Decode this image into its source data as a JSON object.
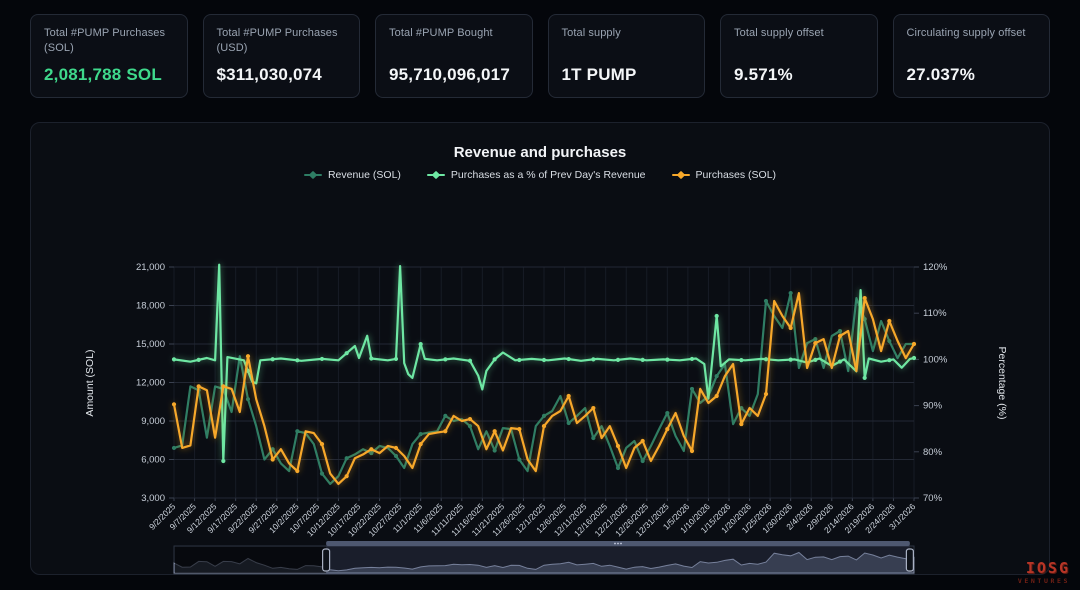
{
  "cards": [
    {
      "label": "Total #PUMP Purchases (SOL)",
      "value": "2,081,788 SOL",
      "value_color": "#3fd98c"
    },
    {
      "label": "Total #PUMP Purchases (USD)",
      "value": "$311,030,074"
    },
    {
      "label": "Total #PUMP Bought",
      "value": "95,710,096,017"
    },
    {
      "label": "Total supply",
      "value": "1T PUMP"
    },
    {
      "label": "Total supply offset",
      "value": "9.571%"
    },
    {
      "label": "Circulating supply offset",
      "value": "27.037%"
    }
  ],
  "chart": {
    "title": "Revenue and purchases",
    "legend": [
      {
        "label": "Revenue (SOL)",
        "color": "#2e7d64"
      },
      {
        "label": "Purchases as a % of Prev Day's Revenue",
        "color": "#6ee7a3"
      },
      {
        "label": "Purchases (SOL)",
        "color": "#f7a82a"
      }
    ]
  },
  "chart_data": {
    "type": "line",
    "title": "Revenue and purchases",
    "x_axis": {
      "first_date": "9/2/2025",
      "last_date": "3/1/2026",
      "tick_interval_days": 5
    },
    "x_ticks": [
      "9/2/2025",
      "9/7/2025",
      "9/12/2025",
      "9/17/2025",
      "9/22/2025",
      "9/27/2025",
      "10/2/2025",
      "10/7/2025",
      "10/12/2025",
      "10/17/2025",
      "10/22/2025",
      "10/27/2025",
      "11/1/2025",
      "11/6/2025",
      "11/11/2025",
      "11/16/2025",
      "11/21/2025",
      "11/26/2025",
      "12/1/2025",
      "12/6/2025",
      "12/11/2025",
      "12/16/2025",
      "12/21/2025",
      "12/26/2025",
      "12/31/2025",
      "1/5/2026",
      "1/10/2026",
      "1/15/2026",
      "1/20/2026",
      "1/25/2026",
      "1/30/2026",
      "2/4/2026",
      "2/9/2026",
      "2/14/2026",
      "2/19/2026",
      "2/24/2026",
      "3/1/2026"
    ],
    "left_axis": {
      "title": "Amount (SOL)",
      "min": 3000,
      "max": 21000,
      "tick_values": [
        3000,
        6000,
        9000,
        12000,
        15000,
        18000,
        21000
      ],
      "tick_labels": [
        "3,000",
        "6,000",
        "9,000",
        "12,000",
        "15,000",
        "18,000",
        "21,000"
      ]
    },
    "right_axis": {
      "title": "Percentage (%)",
      "min": 70,
      "max": 120,
      "tick_values": [
        70,
        80,
        90,
        100,
        110,
        120
      ],
      "tick_labels": [
        "70%",
        "80%",
        "90%",
        "100%",
        "110%",
        "120%"
      ]
    },
    "series": [
      {
        "name": "Revenue (SOL)",
        "axis": "left",
        "color": "#2e7d64",
        "glow": false,
        "start_day": 0,
        "step": 2,
        "values": [
          6900,
          7100,
          11700,
          11400,
          7700,
          11700,
          11500,
          9700,
          14050,
          10700,
          8600,
          6000,
          6800,
          5700,
          5100,
          8200,
          8060,
          7200,
          4900,
          4100,
          4700,
          6100,
          6400,
          6800,
          6500,
          7050,
          6900,
          6270,
          5340,
          7200,
          7980,
          8100,
          8200,
          9400,
          9000,
          9150,
          8600,
          6800,
          8200,
          6700,
          8450,
          8370,
          6000,
          5100,
          8600,
          9400,
          9780,
          10950,
          8840,
          9400,
          10010,
          7670,
          8600,
          7050,
          5340,
          6900,
          7440,
          5880,
          7050,
          8370,
          9620,
          7830,
          6660,
          11500,
          10400,
          10950,
          12500,
          13440,
          8760,
          10010,
          9400,
          11100,
          18350,
          17180,
          16250,
          18970,
          13130,
          15070,
          15380,
          13130,
          15620,
          16010,
          12890,
          18580,
          16940,
          14450,
          16790,
          15230,
          13900,
          15000,
          15000
        ]
      },
      {
        "name": "Purchases as a % of Prev Day's Revenue",
        "axis": "right",
        "color": "#6ee7a3",
        "glow": true,
        "points": [
          [
            0,
            100
          ],
          [
            4,
            99.5
          ],
          [
            8,
            100.3
          ],
          [
            10,
            99.8
          ],
          [
            11,
            120.5
          ],
          [
            12,
            78
          ],
          [
            13,
            100.5
          ],
          [
            17,
            99.8
          ],
          [
            19,
            95.2
          ],
          [
            20,
            94.8
          ],
          [
            21,
            99.8
          ],
          [
            26,
            100.2
          ],
          [
            31,
            99.7
          ],
          [
            36,
            100.1
          ],
          [
            40,
            99.8
          ],
          [
            44,
            102.9
          ],
          [
            45,
            100.3
          ],
          [
            47,
            105.1
          ],
          [
            48,
            100.2
          ],
          [
            52,
            99.8
          ],
          [
            54,
            100.1
          ],
          [
            55,
            120.2
          ],
          [
            56,
            99.2
          ],
          [
            57,
            96.8
          ],
          [
            58,
            96.0
          ],
          [
            60,
            103.3
          ],
          [
            61,
            100.1
          ],
          [
            64,
            99.8
          ],
          [
            68,
            100.2
          ],
          [
            72,
            99.7
          ],
          [
            74,
            96.5
          ],
          [
            75,
            93.5
          ],
          [
            76,
            97.5
          ],
          [
            78,
            100
          ],
          [
            80,
            101.5
          ],
          [
            83,
            99.8
          ],
          [
            87,
            100.1
          ],
          [
            91,
            99.8
          ],
          [
            95,
            100.2
          ],
          [
            99,
            99.7
          ],
          [
            103,
            100.1
          ],
          [
            107,
            99.8
          ],
          [
            111,
            100.2
          ],
          [
            115,
            99.8
          ],
          [
            119,
            100
          ],
          [
            123,
            99.8
          ],
          [
            127,
            100.2
          ],
          [
            129,
            99
          ],
          [
            130,
            91.5
          ],
          [
            132,
            109.4
          ],
          [
            133,
            98.5
          ],
          [
            135,
            100
          ],
          [
            139,
            99.8
          ],
          [
            143,
            100.1
          ],
          [
            147,
            99.8
          ],
          [
            151,
            100
          ],
          [
            154,
            99.3
          ],
          [
            157,
            100.2
          ],
          [
            160,
            98.6
          ],
          [
            163,
            100
          ],
          [
            166,
            97.4
          ],
          [
            167,
            115
          ],
          [
            168,
            96
          ],
          [
            169,
            100.2
          ],
          [
            172,
            99.5
          ],
          [
            175,
            100
          ],
          [
            177,
            98.2
          ],
          [
            179,
            100.1
          ],
          [
            180,
            100.3
          ]
        ]
      },
      {
        "name": "Purchases (SOL)",
        "axis": "left",
        "color": "#f7a82a",
        "glow": true,
        "start_day": 0,
        "step": 2,
        "values": [
          10300,
          6900,
          7100,
          11700,
          11400,
          7700,
          11700,
          11500,
          9700,
          14050,
          10700,
          8600,
          6000,
          6800,
          5700,
          5100,
          8200,
          8060,
          7200,
          4900,
          4100,
          4700,
          6100,
          6400,
          6800,
          6500,
          7050,
          6900,
          6270,
          5340,
          7200,
          7980,
          8100,
          8200,
          9400,
          9000,
          9150,
          8600,
          6800,
          8200,
          6700,
          8450,
          8370,
          6000,
          5100,
          8600,
          9400,
          9780,
          10950,
          8840,
          9400,
          10010,
          7670,
          8600,
          7050,
          5340,
          6900,
          7440,
          5880,
          7050,
          8370,
          9620,
          7830,
          6660,
          11500,
          10400,
          10950,
          12500,
          13440,
          8760,
          10010,
          9400,
          11100,
          18350,
          17180,
          16250,
          18970,
          13130,
          15070,
          15380,
          13130,
          15620,
          16010,
          12890,
          18580,
          16940,
          14450,
          16790,
          15230,
          13900,
          15000
        ]
      }
    ],
    "brush": {
      "selection_days": [
        37,
        179
      ],
      "series_shown": "Purchases (SOL)"
    }
  },
  "watermark": {
    "line1": "IOSG",
    "line2": "VENTURES"
  }
}
